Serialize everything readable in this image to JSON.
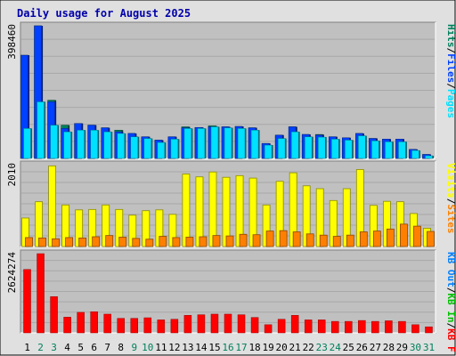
{
  "title": "Daily usage for August 2025",
  "colors": {
    "title": "#0000aa",
    "background": "#e0e0e0",
    "plot": "#c0c0c0",
    "hits": "#00805c",
    "files": "#0040ff",
    "pages": "#00e0ff",
    "visits": "#ffff00",
    "sites": "#ff8000",
    "kb_in": "#00c000",
    "kb_out": "#0080ff",
    "kb_f": "#ff0000",
    "weekday_label": "#000000",
    "weekend_label": "#00805c"
  },
  "weekend_days": [
    2,
    3,
    9,
    10,
    16,
    17,
    23,
    24,
    30,
    31
  ],
  "chart_data": [
    {
      "type": "bar",
      "panel": "hits-files-pages",
      "legend": [
        "Pages",
        "/",
        "Files",
        "/",
        "Hits"
      ],
      "ymax_label": "398460",
      "ylim": [
        0,
        398460
      ],
      "categories": [
        "1",
        "2",
        "3",
        "4",
        "5",
        "6",
        "7",
        "8",
        "9",
        "10",
        "11",
        "12",
        "13",
        "14",
        "15",
        "16",
        "17",
        "18",
        "19",
        "20",
        "21",
        "22",
        "23",
        "24",
        "25",
        "26",
        "27",
        "28",
        "29",
        "30",
        "31"
      ],
      "series": [
        {
          "name": "Hits",
          "values": [
            310000,
            398460,
            175000,
            100000,
            105000,
            100000,
            92000,
            85000,
            75000,
            65000,
            55000,
            65000,
            95000,
            93000,
            98000,
            95000,
            96000,
            92000,
            45000,
            70000,
            95000,
            72000,
            72000,
            65000,
            62000,
            75000,
            60000,
            58000,
            58000,
            27000,
            12000
          ]
        },
        {
          "name": "Files",
          "values": [
            310000,
            398460,
            170000,
            90000,
            105000,
            100000,
            92000,
            80000,
            75000,
            65000,
            55000,
            65000,
            92000,
            93000,
            95000,
            95000,
            96000,
            92000,
            45000,
            70000,
            95000,
            72000,
            70000,
            65000,
            62000,
            75000,
            60000,
            58000,
            58000,
            27000,
            12000
          ]
        },
        {
          "name": "Pages",
          "values": [
            90000,
            170000,
            100000,
            80000,
            85000,
            85000,
            80000,
            75000,
            65000,
            60000,
            48000,
            58000,
            90000,
            90000,
            95000,
            92000,
            90000,
            85000,
            40000,
            60000,
            80000,
            65000,
            64000,
            58000,
            55000,
            68000,
            53000,
            50000,
            50000,
            24000,
            8000
          ]
        }
      ]
    },
    {
      "type": "bar",
      "panel": "visits-sites",
      "legend": [
        "Sites",
        "/",
        "Visits"
      ],
      "ymax_label": "2010",
      "ylim": [
        0,
        2010
      ],
      "categories": [
        "1",
        "2",
        "3",
        "4",
        "5",
        "6",
        "7",
        "8",
        "9",
        "10",
        "11",
        "12",
        "13",
        "14",
        "15",
        "16",
        "17",
        "18",
        "19",
        "20",
        "21",
        "22",
        "23",
        "24",
        "25",
        "26",
        "27",
        "28",
        "29",
        "30",
        "31"
      ],
      "series": [
        {
          "name": "Visits",
          "values": [
            700,
            1100,
            1980,
            1020,
            900,
            910,
            1020,
            910,
            770,
            880,
            900,
            790,
            1780,
            1710,
            1830,
            1700,
            1740,
            1680,
            1020,
            1600,
            1810,
            1490,
            1420,
            1130,
            1420,
            1890,
            1010,
            1110,
            1100,
            810,
            450
          ]
        },
        {
          "name": "Sites",
          "values": [
            220,
            210,
            190,
            220,
            210,
            240,
            270,
            230,
            200,
            180,
            250,
            220,
            230,
            240,
            270,
            260,
            300,
            290,
            380,
            390,
            360,
            310,
            280,
            250,
            280,
            360,
            380,
            430,
            550,
            500,
            370
          ]
        }
      ]
    },
    {
      "type": "bar",
      "panel": "kbf-kbin-kbout",
      "legend": [
        "KB F",
        "/",
        "KB In",
        "/",
        "KB Out"
      ],
      "ymax_label": "2624274",
      "ylim": [
        0,
        2624274
      ],
      "categories": [
        "1",
        "2",
        "3",
        "4",
        "5",
        "6",
        "7",
        "8",
        "9",
        "10",
        "11",
        "12",
        "13",
        "14",
        "15",
        "16",
        "17",
        "18",
        "19",
        "20",
        "21",
        "22",
        "23",
        "24",
        "25",
        "26",
        "27",
        "28",
        "29",
        "30",
        "31"
      ],
      "series": [
        {
          "name": "KB F",
          "values": [
            2100000,
            2624274,
            1200000,
            520000,
            680000,
            700000,
            620000,
            480000,
            480000,
            500000,
            430000,
            450000,
            580000,
            600000,
            620000,
            620000,
            600000,
            510000,
            270000,
            450000,
            580000,
            430000,
            430000,
            380000,
            380000,
            410000,
            380000,
            400000,
            380000,
            270000,
            200000
          ]
        }
      ]
    }
  ]
}
